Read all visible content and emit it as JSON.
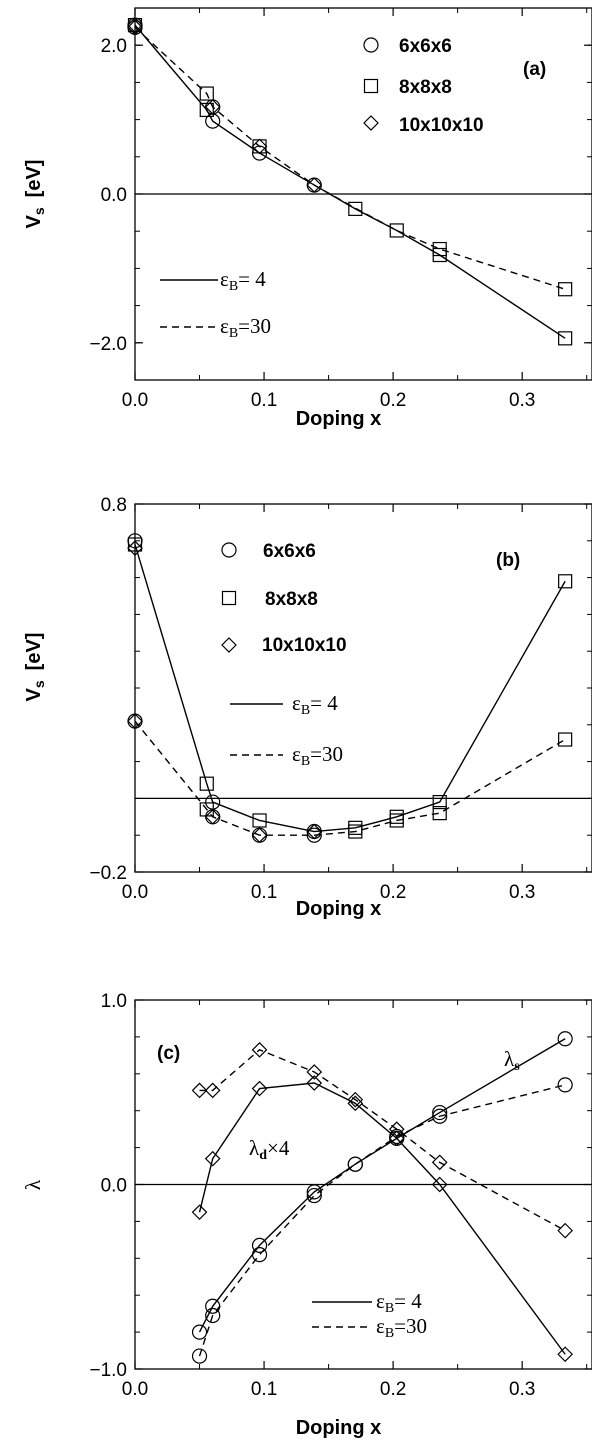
{
  "chart_data": [
    {
      "type": "line",
      "panel_label": "(a)",
      "xlabel": "Doping  x",
      "ylabel_main": "V",
      "ylabel_sub": "s",
      "ylabel_unit": "[eV]",
      "xlim": [
        0.0,
        0.35
      ],
      "ylim": [
        -2.5,
        2.5
      ],
      "x_ticks": [
        0.0,
        0.1,
        0.2,
        0.3
      ],
      "x_tick_labels": [
        "0.0",
        "0.1",
        "0.2",
        "0.3"
      ],
      "y_ticks": [
        -2.0,
        0.0,
        2.0
      ],
      "y_tick_labels": [
        "−2.0",
        "0.0",
        "2.0"
      ],
      "zero_line": true,
      "marker_legend": [
        {
          "marker": "circle",
          "label": "6x6x6"
        },
        {
          "marker": "square",
          "label": "8x8x8"
        },
        {
          "marker": "diamond",
          "label": "10x10x10"
        }
      ],
      "line_legend": [
        {
          "style": "solid",
          "label_main": "ε",
          "label_sub": "B",
          "label_rest": "= 4"
        },
        {
          "style": "dashed",
          "label_main": "ε",
          "label_sub": "B",
          "label_rest": "=30"
        }
      ],
      "series": [
        {
          "style": "solid",
          "x": [
            0.0,
            0.0556,
            0.0602,
            0.0965,
            0.1389,
            0.1707,
            0.2028,
            0.2361,
            0.3333
          ],
          "y": [
            2.27,
            1.13,
            0.98,
            0.55,
            0.12,
            -0.2,
            -0.49,
            -0.82,
            -1.94
          ]
        },
        {
          "style": "dashed",
          "x": [
            0.0,
            0.0556,
            0.0602,
            0.0965,
            0.1389,
            0.1707,
            0.2028,
            0.2361,
            0.3333
          ],
          "y": [
            2.24,
            1.35,
            1.17,
            0.64,
            0.12,
            -0.19,
            -0.49,
            -0.74,
            -1.28
          ]
        }
      ],
      "markers": [
        {
          "shape": "circle",
          "x": [
            0.0,
            0.0,
            0.0602,
            0.0602,
            0.0965,
            0.1389
          ],
          "y": [
            2.27,
            2.24,
            0.98,
            1.17,
            0.55,
            0.12
          ]
        },
        {
          "shape": "square",
          "x": [
            0.0,
            0.0556,
            0.0556,
            0.0965,
            0.1707,
            0.2028,
            0.2361,
            0.2361,
            0.3333,
            0.3333
          ],
          "y": [
            2.27,
            1.13,
            1.35,
            0.64,
            -0.2,
            -0.49,
            -0.82,
            -0.74,
            -1.94,
            -1.28
          ]
        },
        {
          "shape": "diamond",
          "x": [
            0.0,
            0.0,
            0.0602,
            0.0965,
            0.1389
          ],
          "y": [
            2.27,
            2.24,
            1.17,
            0.64,
            0.12
          ]
        }
      ]
    },
    {
      "type": "line",
      "panel_label": "(b)",
      "xlabel": "Doping  x",
      "ylabel_main": "V",
      "ylabel_sub": "s",
      "ylabel_unit": "[eV]",
      "xlim": [
        0.0,
        0.35
      ],
      "ylim": [
        -0.2,
        0.8
      ],
      "x_ticks": [
        0.0,
        0.1,
        0.2,
        0.3
      ],
      "x_tick_labels": [
        "0.0",
        "0.1",
        "0.2",
        "0.3"
      ],
      "y_ticks": [
        -0.2,
        0.8
      ],
      "y_tick_labels": [
        "−0.2",
        "0.8"
      ],
      "minor_y_ticks": [
        -0.1,
        0.0,
        0.1,
        0.2,
        0.3,
        0.4,
        0.5,
        0.6,
        0.7
      ],
      "zero_line": true,
      "marker_legend": [
        {
          "marker": "circle",
          "label": "6x6x6"
        },
        {
          "marker": "square",
          "label": "8x8x8"
        },
        {
          "marker": "diamond",
          "label": "10x10x10"
        }
      ],
      "line_legend": [
        {
          "style": "solid",
          "label_main": "ε",
          "label_sub": "B",
          "label_rest": "= 4"
        },
        {
          "style": "dashed",
          "label_main": "ε",
          "label_sub": "B",
          "label_rest": "=30"
        }
      ],
      "series": [
        {
          "style": "solid",
          "x": [
            0.0,
            0.0556,
            0.0602,
            0.0965,
            0.1389,
            0.1707,
            0.2028,
            0.2361,
            0.3333
          ],
          "y": [
            0.69,
            0.04,
            -0.01,
            -0.06,
            -0.09,
            -0.08,
            -0.05,
            -0.01,
            0.59
          ]
        },
        {
          "style": "dashed",
          "x": [
            0.0,
            0.0556,
            0.0602,
            0.0965,
            0.1389,
            0.1707,
            0.2028,
            0.2361,
            0.3333
          ],
          "y": [
            0.21,
            -0.03,
            -0.05,
            -0.1,
            -0.1,
            -0.09,
            -0.06,
            -0.04,
            0.16
          ]
        }
      ],
      "markers": [
        {
          "shape": "circle",
          "x": [
            0.0,
            0.0,
            0.0602,
            0.0602,
            0.0965,
            0.1389,
            0.1389
          ],
          "y": [
            0.7,
            0.21,
            -0.01,
            -0.05,
            -0.1,
            -0.09,
            -0.1
          ]
        },
        {
          "shape": "square",
          "x": [
            0.0,
            0.0556,
            0.0556,
            0.0965,
            0.1707,
            0.1707,
            0.2028,
            0.2028,
            0.2361,
            0.2361,
            0.3333,
            0.3333
          ],
          "y": [
            0.69,
            0.04,
            -0.03,
            -0.06,
            -0.08,
            -0.09,
            -0.05,
            -0.06,
            -0.01,
            -0.04,
            0.59,
            0.16
          ]
        },
        {
          "shape": "diamond",
          "x": [
            0.0,
            0.0,
            0.0602,
            0.0965,
            0.1389
          ],
          "y": [
            0.68,
            0.21,
            -0.05,
            -0.1,
            -0.09
          ]
        }
      ]
    },
    {
      "type": "line",
      "panel_label": "(c)",
      "xlabel": "Doping  x",
      "ylabel_main": "λ",
      "xlim": [
        0.0,
        0.35
      ],
      "ylim": [
        -1.0,
        1.0
      ],
      "x_ticks": [
        0.0,
        0.1,
        0.2,
        0.3
      ],
      "x_tick_labels": [
        "0.0",
        "0.1",
        "0.2",
        "0.3"
      ],
      "y_ticks": [
        -1.0,
        0.0,
        1.0
      ],
      "y_tick_labels": [
        "−1.0",
        "0.0",
        "1.0"
      ],
      "zero_line": true,
      "annotations": [
        {
          "main": "λ",
          "sub": "s",
          "rest": ""
        },
        {
          "main": "λ",
          "sub": "d",
          "rest": "×4"
        }
      ],
      "line_legend": [
        {
          "style": "solid",
          "label_main": "ε",
          "label_sub": "B",
          "label_rest": "= 4"
        },
        {
          "style": "dashed",
          "label_main": "ε",
          "label_sub": "B",
          "label_rest": "=30"
        }
      ],
      "series": [
        {
          "name": "lambda_s",
          "style": "solid",
          "marker": "circle",
          "x": [
            0.05,
            0.0602,
            0.0965,
            0.1389,
            0.1707,
            0.2028,
            0.2361,
            0.3333
          ],
          "y": [
            -0.8,
            -0.66,
            -0.33,
            -0.04,
            0.11,
            0.25,
            0.39,
            0.79
          ]
        },
        {
          "name": "lambda_s",
          "style": "dashed",
          "marker": "circle",
          "x": [
            0.05,
            0.0602,
            0.0965,
            0.1389,
            0.1707,
            0.2028,
            0.2361,
            0.3333
          ],
          "y": [
            -0.93,
            -0.71,
            -0.38,
            -0.06,
            0.11,
            0.26,
            0.37,
            0.54
          ]
        },
        {
          "name": "lambda_d_x4",
          "style": "solid",
          "marker": "diamond",
          "x": [
            0.05,
            0.0602,
            0.0965,
            0.1389,
            0.1707,
            0.2028,
            0.2361,
            0.3333
          ],
          "y": [
            -0.15,
            0.14,
            0.52,
            0.55,
            0.44,
            0.25,
            0.0,
            -0.92
          ]
        },
        {
          "name": "lambda_d_x4",
          "style": "dashed",
          "marker": "diamond",
          "x": [
            0.05,
            0.0602,
            0.0965,
            0.1389,
            0.1707,
            0.2028,
            0.2361,
            0.3333
          ],
          "y": [
            0.51,
            0.51,
            0.73,
            0.61,
            0.46,
            0.3,
            0.12,
            -0.25
          ]
        }
      ]
    }
  ]
}
